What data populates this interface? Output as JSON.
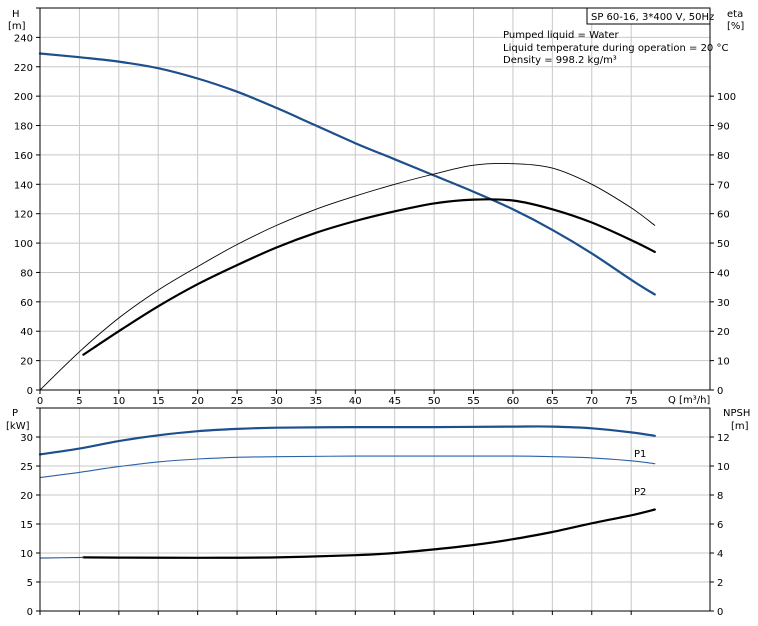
{
  "title_box": "SP 60-16, 3*400 V, 50Hz",
  "conditions": [
    "Pumped liquid = Water",
    "Liquid temperature during operation = 20 °C",
    "Density = 998.2 kg/m³"
  ],
  "colors": {
    "blue": "#1c4f8c",
    "blue_light": "#2a62a8",
    "black": "#000000",
    "grid": "#c8c8c8"
  },
  "chart_data": [
    {
      "type": "line",
      "panel": "top",
      "xlabel": "Q [m³/h]",
      "xlim": [
        0,
        85
      ],
      "xticks": [
        0,
        5,
        10,
        15,
        20,
        25,
        30,
        35,
        40,
        45,
        50,
        55,
        60,
        65,
        70,
        75
      ],
      "left_axis": {
        "label": [
          "H",
          "[m]"
        ],
        "lim": [
          0,
          260
        ],
        "ticks": [
          0,
          20,
          40,
          60,
          80,
          100,
          120,
          140,
          160,
          180,
          200,
          220,
          240
        ]
      },
      "right_axis": {
        "label": [
          "eta",
          "[%]"
        ],
        "lim": [
          0,
          130
        ],
        "ticks": [
          0,
          10,
          20,
          30,
          40,
          50,
          60,
          70,
          80,
          90,
          100
        ]
      },
      "grid": true,
      "series": [
        {
          "axis": "left",
          "color": "#1c4f8c",
          "width": 2.2,
          "x": [
            0,
            5,
            10,
            15,
            20,
            25,
            30,
            35,
            40,
            45,
            50,
            55,
            60,
            65,
            70,
            75,
            78
          ],
          "y": [
            229,
            226.5,
            223.5,
            219,
            212,
            203,
            192,
            180,
            168,
            157,
            146,
            135,
            123,
            109,
            93,
            75,
            65
          ]
        },
        {
          "axis": "right",
          "color": "#000000",
          "width": 0.9,
          "x": [
            0,
            5,
            10,
            15,
            20,
            25,
            30,
            35,
            40,
            45,
            50,
            55,
            60,
            65,
            70,
            75,
            78
          ],
          "y": [
            0,
            13,
            24.5,
            34,
            42,
            49.5,
            56,
            61.5,
            66,
            70,
            73.5,
            76.5,
            77,
            75.5,
            70,
            62,
            56
          ]
        },
        {
          "axis": "right",
          "color": "#000000",
          "width": 2.2,
          "x": [
            5.5,
            10,
            15,
            20,
            25,
            30,
            35,
            40,
            45,
            50,
            55,
            60,
            65,
            70,
            75,
            78
          ],
          "y": [
            12,
            20,
            28.5,
            36,
            42.5,
            48.5,
            53.5,
            57.5,
            60.8,
            63.5,
            64.8,
            64.5,
            61.5,
            57,
            51,
            47
          ]
        }
      ]
    },
    {
      "type": "line",
      "panel": "bottom",
      "xlim": [
        0,
        85
      ],
      "left_axis": {
        "label": [
          "P",
          "[kW]"
        ],
        "lim": [
          0,
          35
        ],
        "ticks": [
          0,
          5,
          10,
          15,
          20,
          25,
          30
        ]
      },
      "right_axis": {
        "label": [
          "NPSH",
          "[m]"
        ],
        "lim": [
          0,
          14
        ],
        "ticks": [
          0,
          2,
          4,
          6,
          8,
          10,
          12
        ]
      },
      "grid": true,
      "series": [
        {
          "name": "P1",
          "axis": "left",
          "color": "#1c4f8c",
          "width": 2.2,
          "x": [
            0,
            5,
            10,
            15,
            20,
            25,
            30,
            40,
            50,
            60,
            65,
            70,
            75,
            78
          ],
          "y": [
            27,
            28,
            29.3,
            30.3,
            31,
            31.4,
            31.6,
            31.7,
            31.7,
            31.8,
            31.8,
            31.5,
            30.8,
            30.2
          ]
        },
        {
          "name": "P2",
          "axis": "left",
          "color": "#2a62a8",
          "width": 1.1,
          "x": [
            0,
            5,
            10,
            15,
            20,
            25,
            30,
            40,
            50,
            60,
            65,
            70,
            75,
            78
          ],
          "y": [
            23,
            23.9,
            24.9,
            25.7,
            26.2,
            26.5,
            26.6,
            26.7,
            26.7,
            26.7,
            26.6,
            26.4,
            25.9,
            25.4
          ]
        },
        {
          "axis": "right",
          "color": "#000000",
          "width": 2.2,
          "x": [
            5.5,
            10,
            20,
            30,
            40,
            45,
            50,
            55,
            60,
            65,
            70,
            75,
            78
          ],
          "y": [
            3.7,
            3.68,
            3.67,
            3.7,
            3.85,
            4.0,
            4.25,
            4.55,
            4.95,
            5.45,
            6.05,
            6.6,
            7.0
          ]
        },
        {
          "axis": "right",
          "color": "#1c4f8c",
          "width": 1.1,
          "x": [
            0,
            5.5
          ],
          "y": [
            3.65,
            3.7
          ]
        }
      ]
    }
  ]
}
